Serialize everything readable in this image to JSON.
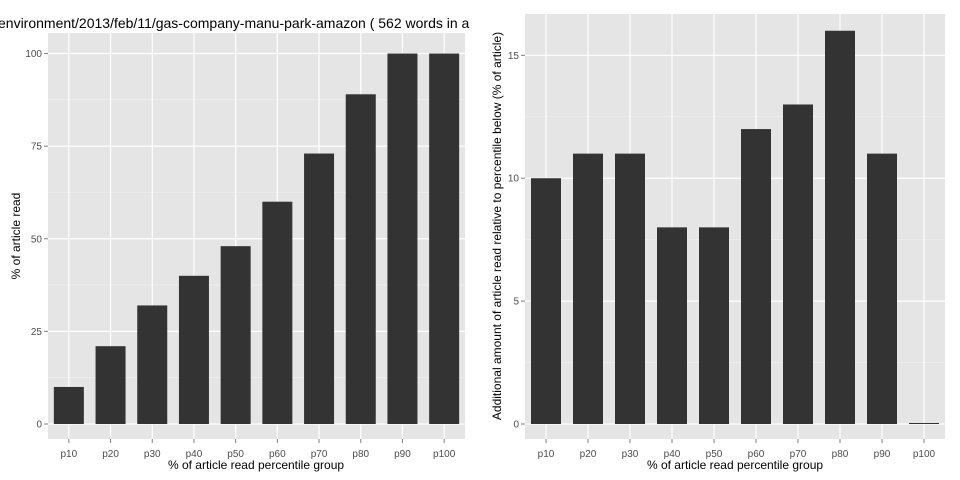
{
  "title": "environment/2013/feb/11/gas-company-manu-park-amazon ( 562 words in a",
  "colors": {
    "panel_bg": "#e5e5e5",
    "grid": "#ffffff",
    "bar": "#333333"
  },
  "chart_data": [
    {
      "type": "bar",
      "categories": [
        "p10",
        "p20",
        "p30",
        "p40",
        "p50",
        "p60",
        "p70",
        "p80",
        "p90",
        "p100"
      ],
      "values": [
        10,
        21,
        32,
        40,
        48,
        60,
        73,
        89,
        100,
        100
      ],
      "xlabel": "% of article read percentile group",
      "ylabel": "% of article read",
      "ylim": [
        0,
        105
      ],
      "yticks": [
        0,
        25,
        50,
        75,
        100
      ],
      "grid": true
    },
    {
      "type": "bar",
      "categories": [
        "p10",
        "p20",
        "p30",
        "p40",
        "p50",
        "p60",
        "p70",
        "p80",
        "p90",
        "p100"
      ],
      "values": [
        10,
        11,
        11,
        8,
        8,
        12,
        13,
        16,
        11,
        0
      ],
      "xlabel": "% of article read percentile group",
      "ylabel": "Additional amount of article read relative to percentile below (% of article)",
      "ylim": [
        0,
        16.6
      ],
      "yticks": [
        0,
        5,
        10,
        15
      ],
      "grid": true
    }
  ]
}
